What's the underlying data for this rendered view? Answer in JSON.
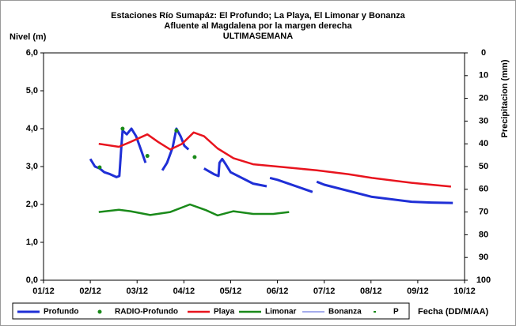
{
  "chart_data": {
    "type": "line",
    "title": "Estaciones Río Sumapáz: El Profundo; La Playa, El Limonar y Bonanza",
    "subtitle": "Afluente al Magdalena por la margen derecha",
    "subtitle2": "ULTIMASEMANA",
    "y_label": "Nivel (m)",
    "y2_label": "Precipitacion (mm)",
    "x_label": "Fecha (DD/M/AA)",
    "xlim": [
      0,
      9
    ],
    "xticks": [
      {
        "value": 0,
        "label": "01/12"
      },
      {
        "value": 1,
        "label": "02/12"
      },
      {
        "value": 2,
        "label": "03/12"
      },
      {
        "value": 3,
        "label": "04/12"
      },
      {
        "value": 4,
        "label": "05/12"
      },
      {
        "value": 5,
        "label": "06/12"
      },
      {
        "value": 6,
        "label": "07/12"
      },
      {
        "value": 7,
        "label": "08/12"
      },
      {
        "value": 8,
        "label": "09/12"
      },
      {
        "value": 9,
        "label": "10/12"
      }
    ],
    "ylim": [
      0,
      6
    ],
    "yticks": [
      {
        "value": 0,
        "label": "0,0"
      },
      {
        "value": 1,
        "label": "1,0"
      },
      {
        "value": 2,
        "label": "2,0"
      },
      {
        "value": 3,
        "label": "3,0"
      },
      {
        "value": 4,
        "label": "4,0"
      },
      {
        "value": 5,
        "label": "5,0"
      },
      {
        "value": 6,
        "label": "6,0"
      }
    ],
    "y2lim": [
      0,
      100
    ],
    "y2_inverted": true,
    "y2ticks": [
      0,
      10,
      20,
      30,
      40,
      50,
      60,
      70,
      80,
      90,
      100
    ],
    "series": [
      {
        "name": "Profundo",
        "color": "#1f2fd6",
        "style": "line",
        "width": 3,
        "x": [
          1.0,
          1.1,
          1.2,
          1.3,
          1.42,
          1.56,
          1.62,
          1.66,
          1.69,
          1.78,
          1.88,
          1.98,
          2.08,
          2.18,
          null,
          2.54,
          2.64,
          2.76,
          2.84,
          2.93,
          3.01,
          3.1,
          null,
          3.43,
          3.64,
          3.74,
          3.76,
          3.82,
          3.9,
          4.0,
          4.48,
          4.77,
          null,
          4.84,
          5.0,
          5.75,
          null,
          5.84,
          6.0,
          7.02,
          7.87,
          8.29,
          8.75
        ],
        "values": [
          3.2,
          3.0,
          2.95,
          2.85,
          2.8,
          2.72,
          2.75,
          3.45,
          3.95,
          3.85,
          4.0,
          3.8,
          3.45,
          3.1,
          null,
          2.9,
          3.1,
          3.5,
          4.0,
          3.8,
          3.55,
          3.45,
          null,
          2.95,
          2.8,
          2.75,
          3.1,
          3.2,
          3.05,
          2.85,
          2.55,
          2.48,
          null,
          2.7,
          2.65,
          2.33,
          null,
          2.6,
          2.52,
          2.2,
          2.07,
          2.05,
          2.04
        ]
      },
      {
        "name": "RADIO-Profundo",
        "color": "#1a8a1a",
        "style": "marker",
        "x": [
          1.2,
          1.69,
          2.22,
          2.84,
          3.23
        ],
        "values": [
          2.98,
          4.0,
          3.28,
          3.95,
          3.25
        ]
      },
      {
        "name": "Playa",
        "color": "#e8141e",
        "style": "line",
        "width": 2.5,
        "x": [
          1.18,
          1.61,
          1.86,
          2.22,
          2.45,
          2.71,
          2.96,
          3.21,
          3.43,
          3.72,
          4.06,
          4.48,
          5.0,
          5.84,
          6.51,
          7.02,
          7.87,
          8.71
        ],
        "values": [
          3.6,
          3.52,
          3.65,
          3.85,
          3.65,
          3.45,
          3.6,
          3.9,
          3.8,
          3.48,
          3.22,
          3.06,
          3.0,
          2.9,
          2.8,
          2.7,
          2.57,
          2.47
        ]
      },
      {
        "name": "Limonar",
        "color": "#1a8a1a",
        "style": "line",
        "width": 2.5,
        "x": [
          1.18,
          1.61,
          1.86,
          2.28,
          2.71,
          3.13,
          3.47,
          3.72,
          4.06,
          4.48,
          4.91,
          5.25
        ],
        "values": [
          1.8,
          1.86,
          1.82,
          1.72,
          1.8,
          2.0,
          1.85,
          1.71,
          1.82,
          1.75,
          1.75,
          1.8
        ]
      },
      {
        "name": "Bonanza",
        "color": "#4a5ad8",
        "style": "line",
        "width": 1,
        "x": [],
        "values": []
      },
      {
        "name": "P",
        "color": "#1a8a1a",
        "style": "dash",
        "axis": "y2",
        "x": [],
        "values": []
      }
    ]
  }
}
